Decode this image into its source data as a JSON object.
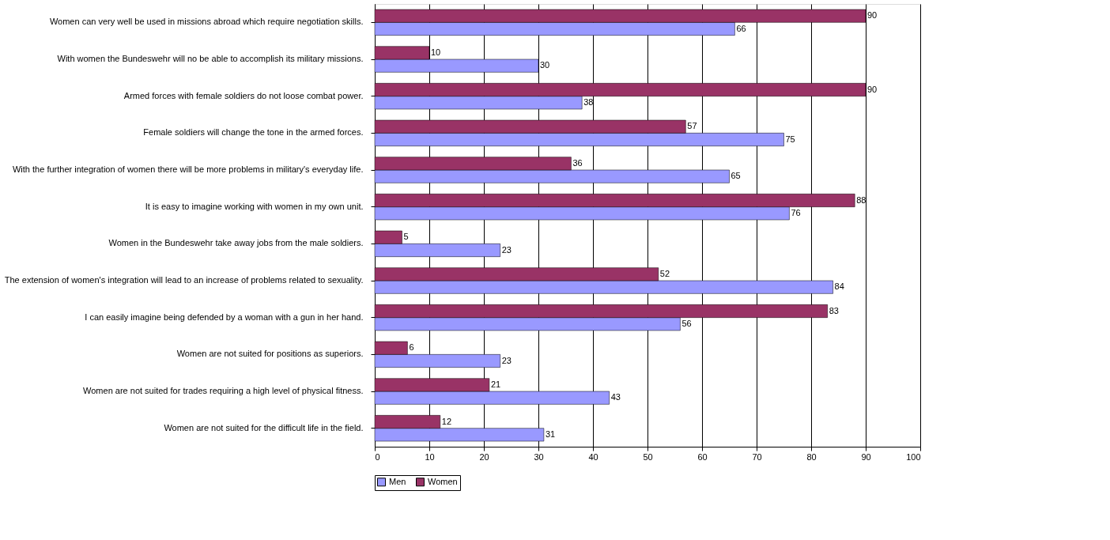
{
  "chart_data": {
    "type": "bar",
    "orientation": "horizontal",
    "categories": [
      "Women can very well be used in missions abroad which require negotiation skills.",
      "With women the Bundeswehr will no be able to accomplish its military missions.",
      "Armed forces with female soldiers do not loose combat power.",
      "Female soldiers will change the tone in the armed forces.",
      "With the further integration of women there will be more problems in military's everyday life.",
      "It is easy to imagine working with women in my own unit.",
      "Women in the Bundeswehr take away jobs from the male soldiers.",
      "The extension of women's integration will lead to an increase of problems related to sexuality.",
      "I can easily imagine being defended by a woman with a gun in her hand.",
      "Women are not suited for positions as superiors.",
      "Women are not suited for trades requiring a high level of physical fitness.",
      "Women are not suited for the difficult life in the field."
    ],
    "series": [
      {
        "name": "Men",
        "color": "#9999ff",
        "values": [
          66,
          30,
          38,
          75,
          65,
          76,
          23,
          84,
          56,
          23,
          43,
          31
        ]
      },
      {
        "name": "Women",
        "color": "#993366",
        "values": [
          90,
          10,
          90,
          57,
          36,
          88,
          5,
          52,
          83,
          6,
          21,
          12
        ]
      }
    ],
    "xlim": [
      0,
      100
    ],
    "xticks": [
      0,
      10,
      20,
      30,
      40,
      50,
      60,
      70,
      80,
      90,
      100
    ],
    "grid": "x",
    "legend": "bottom",
    "data_labels": true
  }
}
